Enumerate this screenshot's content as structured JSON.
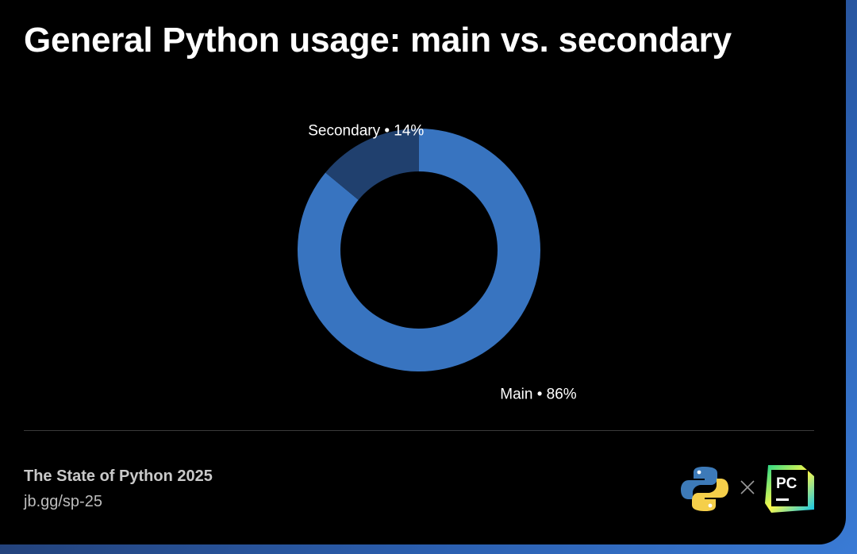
{
  "title": "General Python usage: main vs. secondary",
  "chart_data": {
    "type": "pie",
    "donut": true,
    "slices": [
      {
        "label": "Main",
        "value": 86,
        "color": "#3874c0"
      },
      {
        "label": "Secondary",
        "value": 14,
        "color": "#20406e"
      }
    ],
    "label_separator": " • ",
    "unit": "%"
  },
  "footer": {
    "title": "The State of Python 2025",
    "url": "jb.gg/sp-25",
    "times_symbol": "×",
    "logos": {
      "left": "python-logo-icon",
      "right": "pycharm-logo-icon",
      "pycharm_text": "PC"
    }
  },
  "colors": {
    "background": "#000000",
    "text": "#ffffff",
    "footer_text": "#c9c9c9",
    "border_gradient": "#3a7bd5"
  }
}
